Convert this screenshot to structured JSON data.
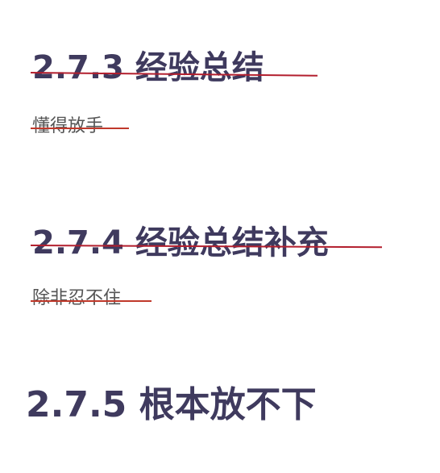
{
  "sections": [
    {
      "heading": "2.7.3 经验总结",
      "note": "懂得放手",
      "struck": true
    },
    {
      "heading": "2.7.4 经验总结补充",
      "note": "除非忍不住",
      "struck": true
    },
    {
      "heading": "2.7.5 根本放不下",
      "struck": false
    }
  ],
  "colors": {
    "heading": "#3f3a5e",
    "note": "#555555",
    "strikethrough": "#b31f2e"
  }
}
